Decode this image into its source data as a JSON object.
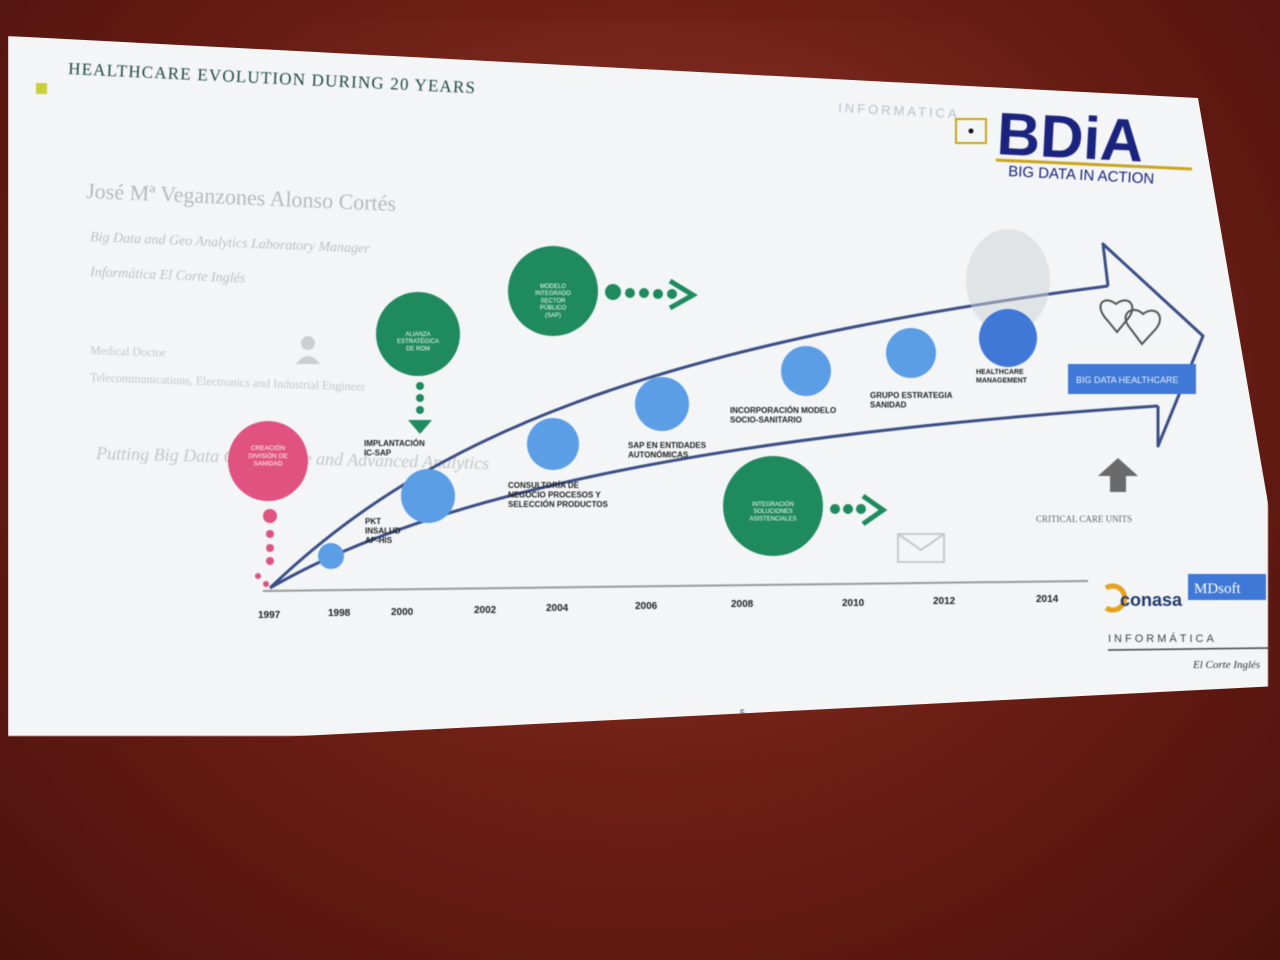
{
  "slide": {
    "title": "HEALTHCARE EVOLUTION DURING 20 YEARS",
    "page_number": "5"
  },
  "speaker": {
    "name": "José Mª Veganzones Alonso Cortés",
    "role": "Big Data and Geo Analytics Laboratory Manager",
    "company": "Informática El Corte Inglés",
    "profession": "Medical Doctor",
    "degrees": "Telecommunications, Electronics and Industrial Engineer",
    "tagline": "Putting Big Data Governance and Advanced Analytics"
  },
  "logos": {
    "bdia_mark": "BDiA",
    "bdia_tagline": "BIG DATA IN ACTION",
    "informatica_top": "INFORMATICA",
    "conasa": "conasa",
    "mdsoft": "MDsoft",
    "informatica_bottom": "INFORMÁTICA",
    "elcorteingles": "El Corte Inglés"
  },
  "timeline": {
    "years": [
      "1997",
      "1998",
      "2000",
      "2002",
      "2004",
      "2006",
      "2008",
      "2010",
      "2012",
      "2014"
    ],
    "milestones": {
      "pkt": "PKT\nINSALUD\nAP-HIS",
      "implantacion": "IMPLANTACIÓN\nIC-SAP",
      "consultoria": "CONSULTORÍA DE\nNEGOCIO PROCESOS Y\nSELECCIÓN PRODUCTOS",
      "sap": "SAP EN ENTIDADES\nAUTONÓMICAS",
      "incorporacion": "INCORPORACIÓN MODELO\nSOCIO-SANITARIO",
      "grupo": "GRUPO ESTRATEGIA\nSANIDAD",
      "healthcare": "HEALTHCARE\nMANAGEMENT"
    },
    "green_circles": {
      "alianza": "ALIANZA\nESTRATÉGICA\nDE ROM",
      "modelo": "MODELO\nINTEGRADO\nSECTOR\nPÚBLICO\n(SAP)",
      "integracion": "INTEGRACIÓN\nSOLUCIONES\nASISTENCIALES"
    },
    "pink_circle": "CREACIÓN\nDIVISIÓN DE\nSANIDAD",
    "badge": "BIG DATA HEALTHCARE",
    "critical_care": "CRITICAL CARE UNITS"
  },
  "colors": {
    "green": "#1f8a5e",
    "blue": "#5b9ee6",
    "pink": "#e0527f",
    "arrow": "#3a4f86",
    "title": "#1f4a3f",
    "bdia_blue": "#1a237e"
  }
}
